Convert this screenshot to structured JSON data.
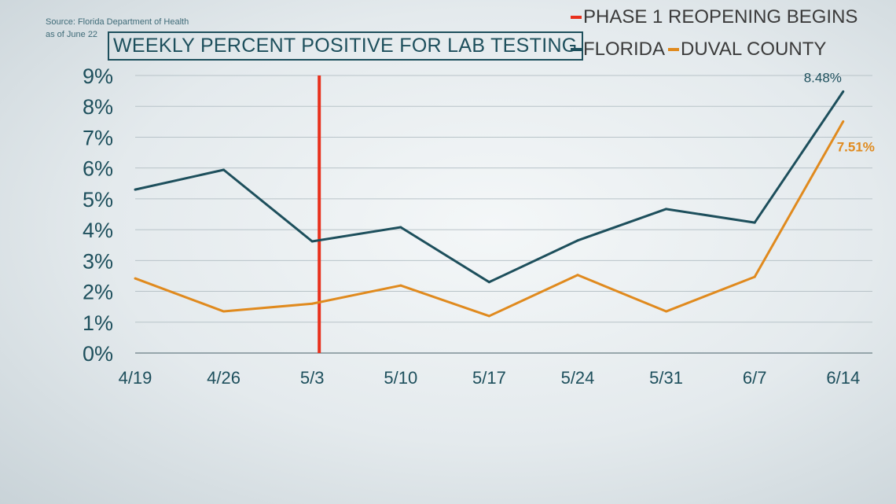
{
  "source": {
    "line1": "Source: Florida Department of Health",
    "line2": "as of June 22"
  },
  "chart_data": {
    "type": "line",
    "title": "WEEKLY PERCENT POSITIVE FOR LAB TESTING",
    "categories": [
      "4/19",
      "4/26",
      "5/3",
      "5/10",
      "5/17",
      "5/24",
      "5/31",
      "6/7",
      "6/14"
    ],
    "yticks": [
      "0%",
      "1%",
      "2%",
      "3%",
      "4%",
      "5%",
      "6%",
      "7%",
      "8%",
      "9%"
    ],
    "ylim": [
      0,
      9
    ],
    "grid": true,
    "legend_position": "top-right",
    "series": [
      {
        "name": "FLORIDA",
        "color": "#1d4f5c",
        "values": [
          5.3,
          5.94,
          3.62,
          4.08,
          2.3,
          3.65,
          4.67,
          4.23,
          8.48
        ],
        "end_label": "8.48%"
      },
      {
        "name": "DUVAL COUNTY",
        "color": "#e08a1e",
        "values": [
          2.42,
          1.35,
          1.6,
          2.19,
          1.2,
          2.53,
          1.35,
          2.47,
          7.51
        ],
        "end_label": "7.51%"
      }
    ],
    "annotation": {
      "label": "PHASE 1 REOPENING BEGINS",
      "at": "5/3",
      "color": "#e8301c"
    }
  }
}
